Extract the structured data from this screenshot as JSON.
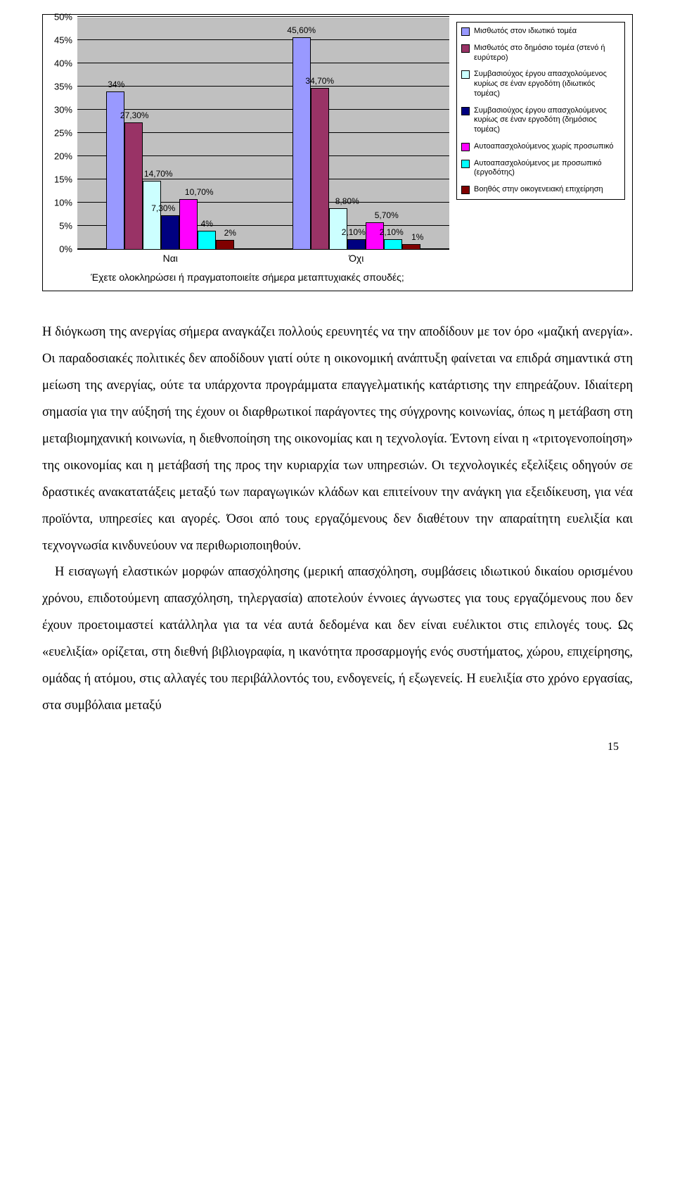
{
  "chart": {
    "type": "bar-grouped",
    "ylim": [
      0,
      50
    ],
    "ytick_step": 5,
    "yticks": [
      "0%",
      "5%",
      "10%",
      "15%",
      "20%",
      "25%",
      "30%",
      "35%",
      "40%",
      "45%",
      "50%"
    ],
    "background_color": "#c0c0c0",
    "grid_color": "#000000",
    "series_colors": [
      "#9999ff",
      "#993366",
      "#ccffff",
      "#000080",
      "#ff00ff",
      "#00ffff",
      "#800000"
    ],
    "categories": [
      {
        "label": "Ναι",
        "values": [
          34,
          27.3,
          14.7,
          7.3,
          10.7,
          4,
          2
        ],
        "labels": [
          "34%",
          "27,30%",
          "14,70%",
          "7,30%",
          "10,70%",
          "4%",
          "2%"
        ],
        "label_offsets": [
          1,
          1,
          9,
          -10,
          15,
          0,
          7
        ]
      },
      {
        "label": "Όχι",
        "values": [
          45.6,
          34.7,
          8.8,
          2.1,
          5.7,
          2.1,
          1
        ],
        "labels": [
          "45,60%",
          "34,70%",
          "8,80%",
          "2,10%",
          "5,70%",
          "2,10%",
          "1%"
        ],
        "label_offsets": [
          0,
          0,
          13,
          -4,
          17,
          -2,
          9
        ]
      }
    ],
    "question": "Έχετε ολοκληρώσει ή πραγματοποιείτε σήμερα μεταπτυχιακές σπουδές;",
    "legend": [
      "Μισθωτός στον ιδιωτικό τομέα",
      "Μισθωτός στο δημόσιο τομέα (στενό ή ευρύτερο)",
      "Συμβασιούχος έργου απασχολούμενος κυρίως σε έναν εργοδότη (ιδιωτικός τομέας)",
      "Συμβασιούχος έργου απασχολούμενος κυρίως σε έναν εργοδότη (δημόσιος τομέας)",
      "Αυτοαπασχολούμενος χωρίς προσωπικό",
      "Αυτοαπασχολούμενος με προσωπικό (εργοδότης)",
      "Βοηθός στην οικογενειακή επιχείρηση"
    ]
  },
  "para1": "Η διόγκωση της ανεργίας σήμερα αναγκάζει πολλούς ερευνητές να την αποδίδουν με τον όρο «μαζική ανεργία». Οι παραδοσιακές πολιτικές δεν αποδίδουν γιατί ούτε η οικονομική ανάπτυξη φαίνεται να επιδρά σημαντικά στη μείωση της ανεργίας, ούτε τα υπάρχοντα προγράμματα επαγγελματικής κατάρτισης την επηρεάζουν. Ιδιαίτερη σημασία για την αύξησή της έχουν οι διαρθρωτικοί παράγοντες της σύγχρονης κοινωνίας, όπως η μετάβαση στη μεταβιομηχανική κοινωνία, η διεθνοποίηση της οικονομίας και η τεχνολογία. Έντονη είναι η «τριτογενοποίηση» της οικονομίας και η μετάβασή της προς την κυριαρχία των υπηρεσιών. Οι τεχνολογικές εξελίξεις οδηγούν σε δραστικές ανακατατάξεις μεταξύ των παραγωγικών κλάδων και επιτείνουν την ανάγκη για εξειδίκευση, για νέα προϊόντα, υπηρεσίες και αγορές. Όσοι από τους εργαζόμενους δεν διαθέτουν την απαραίτητη ευελιξία και τεχνογνωσία κινδυνεύουν να περιθωριοποιηθούν.",
  "para2": "Η εισαγωγή ελαστικών μορφών απασχόλησης (μερική απασχόληση, συμβάσεις ιδιωτικού δικαίου ορισμένου χρόνου, επιδοτούμενη απασχόληση, τηλεργασία) αποτελούν έννοιες άγνωστες για τους εργαζόμενους που δεν έχουν προετοιμαστεί κατάλληλα για τα νέα αυτά δεδομένα και δεν είναι ευέλικτοι στις επιλογές τους. Ως «ευελιξία» ορίζεται, στη διεθνή βιβλιογραφία, η ικανότητα προσαρμογής ενός συστήματος, χώρου, επιχείρησης, ομάδας ή ατόμου, στις αλλαγές του περιβάλλοντός του, ενδογενείς, ή εξωγενείς. Η ευελιξία στο χρόνο εργασίας, στα συμβόλαια μεταξύ",
  "page_number": "15"
}
